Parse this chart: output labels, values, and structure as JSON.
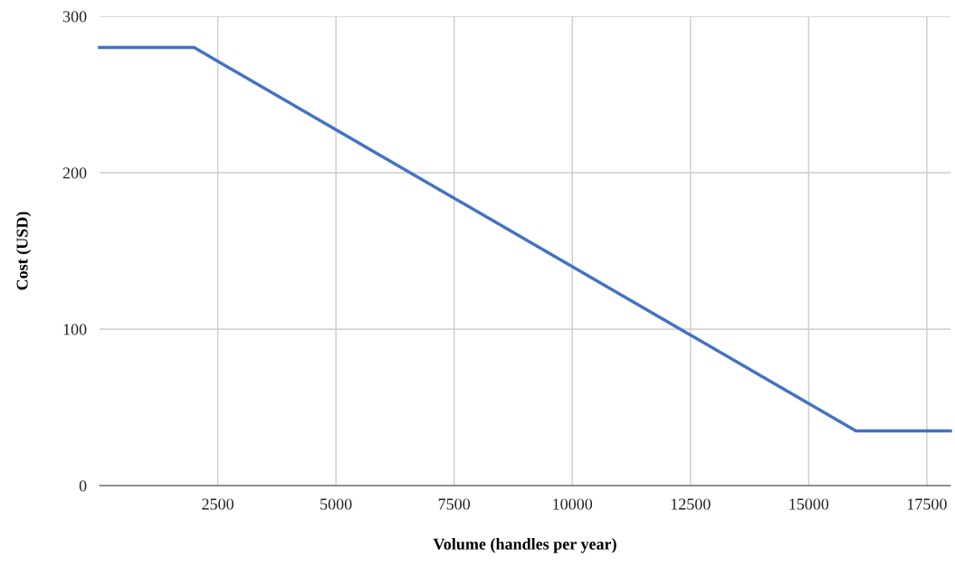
{
  "chart_data": {
    "type": "line",
    "xlabel": "Volume (handles per year)",
    "ylabel": "Cost (USD)",
    "x": [
      0,
      2000,
      16000,
      18000
    ],
    "series": [
      {
        "color": "#4472c4",
        "values": [
          280,
          280,
          35,
          35
        ]
      }
    ],
    "xlim": [
      0,
      18000
    ],
    "xticks": [
      2500,
      5000,
      7500,
      10000,
      12500,
      15000,
      17500
    ],
    "ylim": [
      0,
      300
    ],
    "yticks": [
      0,
      100,
      200,
      300
    ],
    "grid": true,
    "legend": false,
    "marker": "none",
    "line_style": "solid"
  }
}
